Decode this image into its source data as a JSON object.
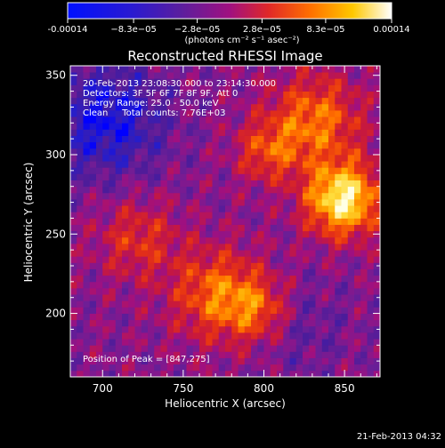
{
  "chart_data": {
    "type": "heatmap",
    "title": "Reconstructed RHESSI Image",
    "xlabel": "Heliocentric X (arcsec)",
    "ylabel": "Heliocentric Y (arcsec)",
    "xlim": [
      680,
      872
    ],
    "ylim": [
      160,
      356
    ],
    "x_ticks": [
      "700",
      "750",
      "800",
      "850"
    ],
    "y_ticks": [
      "200",
      "250",
      "300",
      "350"
    ],
    "x_tick_values": [
      700,
      750,
      800,
      850
    ],
    "y_tick_values": [
      200,
      250,
      300,
      350
    ],
    "colorbar": {
      "tick_labels": [
        "-0.00014",
        "−8.3e−05",
        "−2.8e−05",
        "2.8e−05",
        "8.3e−05",
        "0.00014"
      ],
      "tick_values": [
        -0.00014,
        -8.3e-05,
        -2.8e-05,
        2.8e-05,
        8.3e-05,
        0.00014
      ],
      "min": -0.00014,
      "max": 0.00014,
      "unit_label": "(photons cm⁻² s⁻¹ asec⁻²)",
      "colors": [
        "#0000ff",
        "#4b1c9a",
        "#a01080",
        "#e0401a",
        "#ffa000",
        "#ffffff"
      ]
    },
    "annotations": {
      "time_range": "20-Feb-2013 23:08:30.000 to 23:14:30.000",
      "detectors": "Detectors: 3F 5F 6F 7F 8F 9F, Att 0",
      "energy": "Energy Range: 25.0 - 50.0 keV",
      "clean": "Clean     Total counts: 7.76E+03",
      "peak": "Position of Peak = [847,275]"
    },
    "peak": [
      847,
      275
    ]
  },
  "footer": {
    "timestamp": "21-Feb-2013 04:32"
  },
  "colors": {
    "background": "#000000",
    "text": "#ffffff"
  }
}
